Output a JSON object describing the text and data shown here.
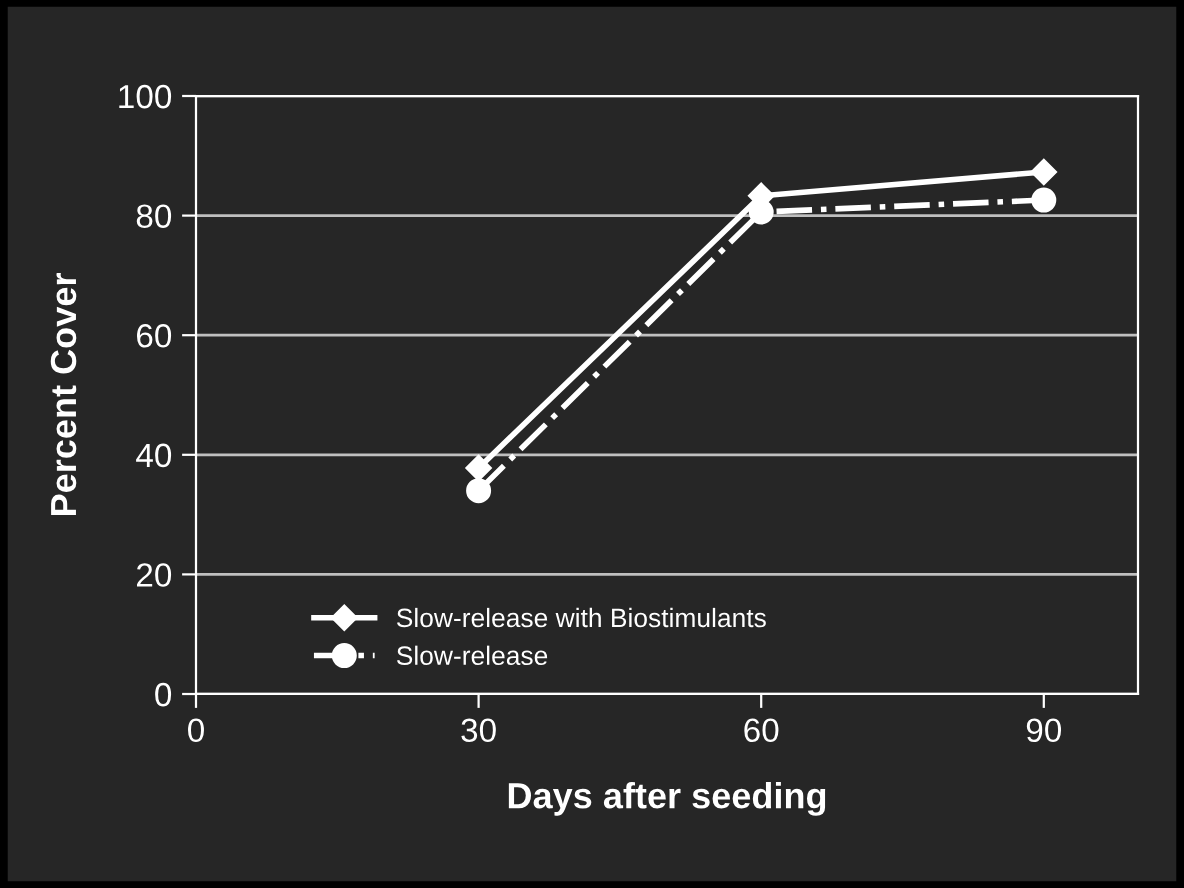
{
  "chart_data": {
    "type": "line",
    "xlabel": "Days after seeding",
    "ylabel": "Percent Cover",
    "x": [
      30,
      60,
      90
    ],
    "series": [
      {
        "name": "Slow-release with Biostimulants",
        "color": "#ffffff",
        "values": [
          37.8,
          83.3,
          87.3
        ],
        "marker": "diamond",
        "line_style": "solid"
      },
      {
        "name": "Slow-release",
        "color": "#ffffff",
        "values": [
          34.0,
          80.6,
          82.6
        ],
        "marker": "circle",
        "line_style": "dashdot"
      }
    ],
    "xlim": [
      0,
      100
    ],
    "xticks": [
      0,
      30,
      60,
      90
    ],
    "ylim": [
      0,
      100
    ],
    "yticks": [
      0,
      20,
      40,
      60,
      80,
      100
    ],
    "grid": "y",
    "legend": "bottom left"
  }
}
